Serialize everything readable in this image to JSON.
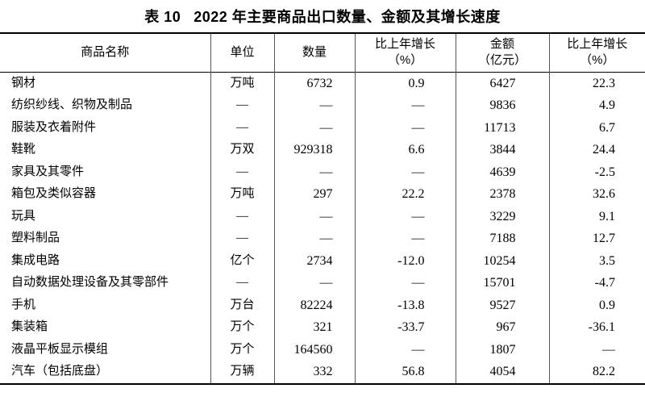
{
  "title": {
    "label": "表 10",
    "text": "2022 年主要商品出口数量、金额及其增长速度"
  },
  "table": {
    "columns": [
      {
        "line1": "商品名称",
        "line2": ""
      },
      {
        "line1": "单位",
        "line2": ""
      },
      {
        "line1": "数量",
        "line2": ""
      },
      {
        "line1": "比上年增长",
        "line2": "（%）"
      },
      {
        "line1": "金额",
        "line2": "（亿元）"
      },
      {
        "line1": "比上年增长",
        "line2": "（%）"
      }
    ],
    "rows": [
      {
        "name": "钢材",
        "unit": "万吨",
        "quantity": "6732",
        "quantity_growth": "0.9",
        "amount": "6427",
        "amount_growth": "22.3"
      },
      {
        "name": "纺织纱线、织物及制品",
        "unit": "—",
        "quantity": "—",
        "quantity_growth": "—",
        "amount": "9836",
        "amount_growth": "4.9"
      },
      {
        "name": "服装及衣着附件",
        "unit": "—",
        "quantity": "—",
        "quantity_growth": "—",
        "amount": "11713",
        "amount_growth": "6.7"
      },
      {
        "name": "鞋靴",
        "unit": "万双",
        "quantity": "929318",
        "quantity_growth": "6.6",
        "amount": "3844",
        "amount_growth": "24.4"
      },
      {
        "name": "家具及其零件",
        "unit": "—",
        "quantity": "—",
        "quantity_growth": "—",
        "amount": "4639",
        "amount_growth": "-2.5"
      },
      {
        "name": "箱包及类似容器",
        "unit": "万吨",
        "quantity": "297",
        "quantity_growth": "22.2",
        "amount": "2378",
        "amount_growth": "32.6"
      },
      {
        "name": "玩具",
        "unit": "—",
        "quantity": "—",
        "quantity_growth": "—",
        "amount": "3229",
        "amount_growth": "9.1"
      },
      {
        "name": "塑料制品",
        "unit": "—",
        "quantity": "—",
        "quantity_growth": "—",
        "amount": "7188",
        "amount_growth": "12.7"
      },
      {
        "name": "集成电路",
        "unit": "亿个",
        "quantity": "2734",
        "quantity_growth": "-12.0",
        "amount": "10254",
        "amount_growth": "3.5"
      },
      {
        "name": "自动数据处理设备及其零部件",
        "unit": "—",
        "quantity": "—",
        "quantity_growth": "—",
        "amount": "15701",
        "amount_growth": "-4.7"
      },
      {
        "name": "手机",
        "unit": "万台",
        "quantity": "82224",
        "quantity_growth": "-13.8",
        "amount": "9527",
        "amount_growth": "0.9"
      },
      {
        "name": "集装箱",
        "unit": "万个",
        "quantity": "321",
        "quantity_growth": "-33.7",
        "amount": "967",
        "amount_growth": "-36.1"
      },
      {
        "name": "液晶平板显示模组",
        "unit": "万个",
        "quantity": "164560",
        "quantity_growth": "—",
        "amount": "1807",
        "amount_growth": "—"
      },
      {
        "name": "汽车（包括底盘）",
        "unit": "万辆",
        "quantity": "332",
        "quantity_growth": "56.8",
        "amount": "4054",
        "amount_growth": "82.2"
      }
    ]
  }
}
